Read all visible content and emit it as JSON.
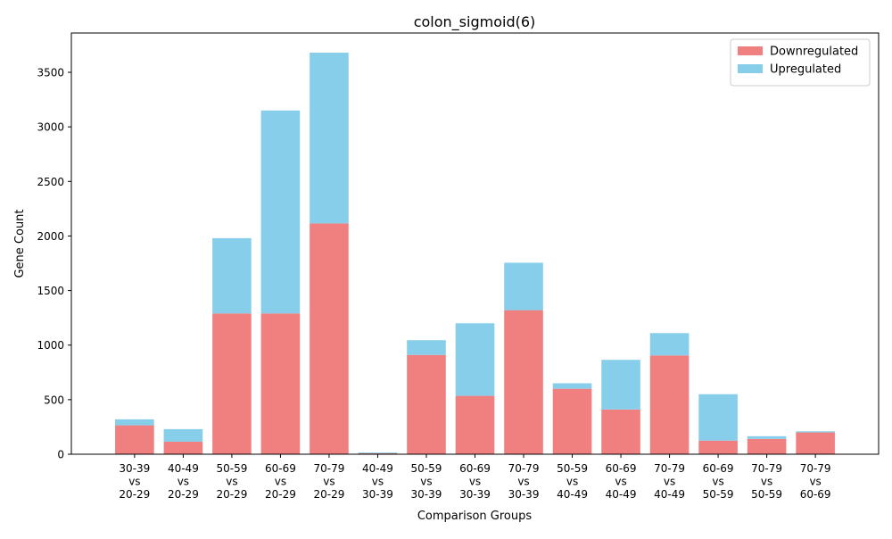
{
  "chart_data": {
    "type": "bar",
    "stacked": true,
    "title": "colon_sigmoid(6)",
    "xlabel": "Comparison Groups",
    "ylabel": "Gene Count",
    "ylim": [
      0,
      3860
    ],
    "yticks": [
      0,
      500,
      1000,
      1500,
      2000,
      2500,
      3000,
      3500
    ],
    "grid": false,
    "legend_position": "top-right",
    "categories": [
      [
        "30-39",
        "vs",
        "20-29"
      ],
      [
        "40-49",
        "vs",
        "20-29"
      ],
      [
        "50-59",
        "vs",
        "20-29"
      ],
      [
        "60-69",
        "vs",
        "20-29"
      ],
      [
        "70-79",
        "vs",
        "20-29"
      ],
      [
        "40-49",
        "vs",
        "30-39"
      ],
      [
        "50-59",
        "vs",
        "30-39"
      ],
      [
        "60-69",
        "vs",
        "30-39"
      ],
      [
        "70-79",
        "vs",
        "30-39"
      ],
      [
        "50-59",
        "vs",
        "40-49"
      ],
      [
        "60-69",
        "vs",
        "40-49"
      ],
      [
        "70-79",
        "vs",
        "40-49"
      ],
      [
        "60-69",
        "vs",
        "50-59"
      ],
      [
        "70-79",
        "vs",
        "50-59"
      ],
      [
        "70-79",
        "vs",
        "60-69"
      ]
    ],
    "series": [
      {
        "name": "Downregulated",
        "color": "#f08080",
        "values": [
          265,
          115,
          1290,
          1290,
          2115,
          8,
          910,
          535,
          1320,
          600,
          410,
          905,
          125,
          140,
          200
        ]
      },
      {
        "name": "Upregulated",
        "color": "#87ceeb",
        "values": [
          55,
          115,
          690,
          1860,
          1565,
          7,
          135,
          665,
          435,
          50,
          455,
          205,
          425,
          25,
          10
        ]
      }
    ]
  }
}
